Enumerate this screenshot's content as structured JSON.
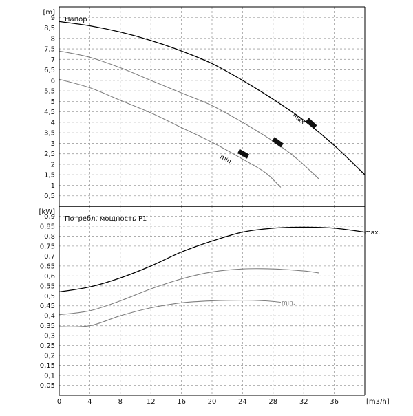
{
  "chart_data": [
    {
      "type": "line",
      "title": "Напор",
      "ylabel": "[m]",
      "xlabel": "[m3/h]",
      "xlim": [
        0,
        40
      ],
      "ylim": [
        0,
        9.5
      ],
      "grid": true,
      "y_ticks": [
        0.5,
        1,
        1.5,
        2,
        2.5,
        3,
        3.5,
        4,
        4.5,
        5,
        5.5,
        6,
        6.5,
        7,
        7.5,
        8,
        8.5,
        9
      ],
      "y_tick_labels": [
        "0,5",
        "1",
        "1,5",
        "2",
        "2,5",
        "3",
        "3,5",
        "4",
        "4,5",
        "5",
        "5,5",
        "6",
        "6,5",
        "7",
        "7,5",
        "8",
        "8,5",
        "9"
      ],
      "series": [
        {
          "name": "max",
          "color": "#000000",
          "points": [
            [
              0,
              8.8
            ],
            [
              4,
              8.6
            ],
            [
              8,
              8.3
            ],
            [
              12,
              7.9
            ],
            [
              16,
              7.4
            ],
            [
              20,
              6.8
            ],
            [
              24,
              6.0
            ],
            [
              28,
              5.1
            ],
            [
              32,
              4.1
            ],
            [
              36,
              2.9
            ],
            [
              40,
              1.5
            ]
          ]
        },
        {
          "name": "",
          "color": "#7f7f7f",
          "points": [
            [
              0,
              7.4
            ],
            [
              4,
              7.1
            ],
            [
              8,
              6.6
            ],
            [
              12,
              6.0
            ],
            [
              16,
              5.4
            ],
            [
              20,
              4.8
            ],
            [
              24,
              4.0
            ],
            [
              28,
              3.1
            ],
            [
              31,
              2.3
            ],
            [
              34,
              1.3
            ]
          ]
        },
        {
          "name": "min",
          "color": "#7f7f7f",
          "points": [
            [
              0,
              6.05
            ],
            [
              4,
              5.65
            ],
            [
              8,
              5.05
            ],
            [
              12,
              4.45
            ],
            [
              16,
              3.75
            ],
            [
              20,
              3.05
            ],
            [
              24,
              2.25
            ],
            [
              27,
              1.6
            ],
            [
              29,
              0.9
            ]
          ]
        }
      ],
      "curve_labels": [
        {
          "text": "max",
          "x": 30.5,
          "y": 4.3,
          "angle": 38,
          "color": "#000000"
        },
        {
          "text": "min.",
          "x": 21.0,
          "y": 2.3,
          "angle": 28,
          "color": "#000000"
        }
      ],
      "markers": [
        {
          "x": 33,
          "y": 3.95,
          "angle": 40
        },
        {
          "x": 28.6,
          "y": 3.05,
          "angle": 32
        },
        {
          "x": 24.1,
          "y": 2.5,
          "angle": 26
        }
      ]
    },
    {
      "type": "line",
      "title": "Потребл. мощность P1",
      "ylabel": "[kW]",
      "xlabel": "[m3/h]",
      "xlim": [
        0,
        40
      ],
      "ylim": [
        0,
        0.95
      ],
      "grid": true,
      "x_ticks": [
        0,
        4,
        8,
        12,
        16,
        20,
        24,
        28,
        32,
        36
      ],
      "x_tick_labels": [
        "0",
        "4",
        "8",
        "12",
        "16",
        "20",
        "24",
        "28",
        "32",
        "36"
      ],
      "y_ticks": [
        0.05,
        0.1,
        0.15,
        0.2,
        0.25,
        0.3,
        0.35,
        0.4,
        0.45,
        0.5,
        0.55,
        0.6,
        0.65,
        0.7,
        0.75,
        0.8,
        0.85,
        0.9
      ],
      "y_tick_labels": [
        "0,05",
        "0,1",
        "0,15",
        "0,2",
        "0,25",
        "0,3",
        "0,35",
        "0,4",
        "0,45",
        "0,5",
        "0,55",
        "0,6",
        "0,65",
        "0,7",
        "0,75",
        "0,8",
        "0,85",
        "0,9"
      ],
      "series": [
        {
          "name": "max.",
          "color": "#000000",
          "points": [
            [
              0,
              0.52
            ],
            [
              4,
              0.545
            ],
            [
              8,
              0.59
            ],
            [
              12,
              0.65
            ],
            [
              16,
              0.72
            ],
            [
              20,
              0.775
            ],
            [
              24,
              0.82
            ],
            [
              28,
              0.84
            ],
            [
              32,
              0.845
            ],
            [
              36,
              0.84
            ],
            [
              40,
              0.82
            ]
          ]
        },
        {
          "name": "",
          "color": "#7f7f7f",
          "points": [
            [
              0,
              0.405
            ],
            [
              4,
              0.425
            ],
            [
              8,
              0.475
            ],
            [
              12,
              0.535
            ],
            [
              16,
              0.585
            ],
            [
              20,
              0.62
            ],
            [
              24,
              0.635
            ],
            [
              28,
              0.635
            ],
            [
              32,
              0.625
            ],
            [
              34,
              0.615
            ]
          ]
        },
        {
          "name": "min.",
          "color": "#7f7f7f",
          "points": [
            [
              0,
              0.345
            ],
            [
              4,
              0.35
            ],
            [
              8,
              0.4
            ],
            [
              12,
              0.44
            ],
            [
              16,
              0.465
            ],
            [
              20,
              0.475
            ],
            [
              24,
              0.478
            ],
            [
              27,
              0.475
            ],
            [
              29,
              0.468
            ]
          ]
        }
      ]
    }
  ]
}
